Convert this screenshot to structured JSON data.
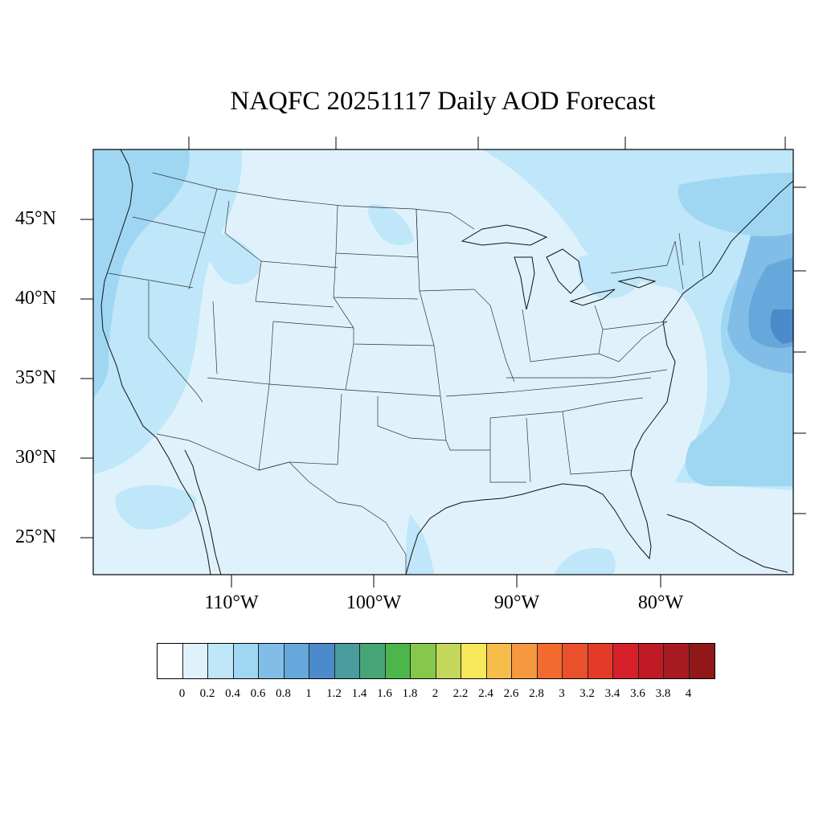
{
  "title": "NAQFC 20251117 Daily AOD Forecast",
  "lat_labels": [
    "45°N",
    "40°N",
    "35°N",
    "30°N",
    "25°N"
  ],
  "lon_labels": [
    "110°W",
    "100°W",
    "90°W",
    "80°W"
  ],
  "colorbar": {
    "labels": [
      "0",
      "0.2",
      "0.4",
      "0.6",
      "0.8",
      "1",
      "1.2",
      "1.4",
      "1.6",
      "1.8",
      "2",
      "2.2",
      "2.4",
      "2.6",
      "2.8",
      "3",
      "3.2",
      "3.4",
      "3.6",
      "3.8",
      "4"
    ],
    "colors": [
      "#ffffff",
      "#dff2fc",
      "#bfe6f9",
      "#9fd7f3",
      "#82bde8",
      "#65a8dc",
      "#4b8acb",
      "#4a9b9e",
      "#46a574",
      "#4cb64a",
      "#86c84b",
      "#c3d75a",
      "#f7e75b",
      "#f7bd4b",
      "#f6983f",
      "#f36a2e",
      "#e9502b",
      "#e33b28",
      "#d62029",
      "#c01b24",
      "#a81a22",
      "#901818"
    ]
  },
  "map": {
    "background_color": "#dff2fc",
    "aod_level_light": "#bfe6f9",
    "aod_level_mid": "#9fd7f3",
    "aod_level_high": "#65a8dc",
    "aod_level_peak": "#4b8acb",
    "border_color": "#333333"
  }
}
